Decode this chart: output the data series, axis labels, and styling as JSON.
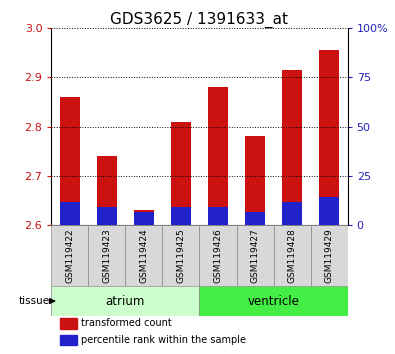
{
  "title": "GDS3625 / 1391633_at",
  "samples": [
    "GSM119422",
    "GSM119423",
    "GSM119424",
    "GSM119425",
    "GSM119426",
    "GSM119427",
    "GSM119428",
    "GSM119429"
  ],
  "red_tops": [
    2.86,
    2.74,
    2.63,
    2.81,
    2.88,
    2.78,
    2.915,
    2.955
  ],
  "blue_tops": [
    2.647,
    2.636,
    2.626,
    2.636,
    2.636,
    2.626,
    2.646,
    2.656
  ],
  "bar_base": 2.6,
  "ylim_left": [
    2.6,
    3.0
  ],
  "ylim_right": [
    0,
    100
  ],
  "yticks_left": [
    2.6,
    2.7,
    2.8,
    2.9,
    3.0
  ],
  "yticks_right": [
    0,
    25,
    50,
    75,
    100
  ],
  "ytick_labels_right": [
    "0",
    "25",
    "50",
    "75",
    "100%"
  ],
  "red_color": "#cc1111",
  "blue_color": "#2222cc",
  "tissue_groups": [
    {
      "label": "atrium",
      "start": 0,
      "end": 4,
      "color": "#ccffcc"
    },
    {
      "label": "ventricle",
      "start": 4,
      "end": 8,
      "color": "#44ee44"
    }
  ],
  "bar_width": 0.55,
  "legend_items": [
    {
      "label": "transformed count",
      "color": "#cc1111"
    },
    {
      "label": "percentile rank within the sample",
      "color": "#2222cc"
    }
  ],
  "axis_label_color_left": "#cc1111",
  "axis_label_color_right": "#2222bb",
  "bg_color": "#ffffff",
  "sample_bg": "#d8d8d8",
  "title_fontsize": 11,
  "tick_fontsize": 8,
  "sample_fontsize": 6.5,
  "tissue_fontsize": 8.5
}
